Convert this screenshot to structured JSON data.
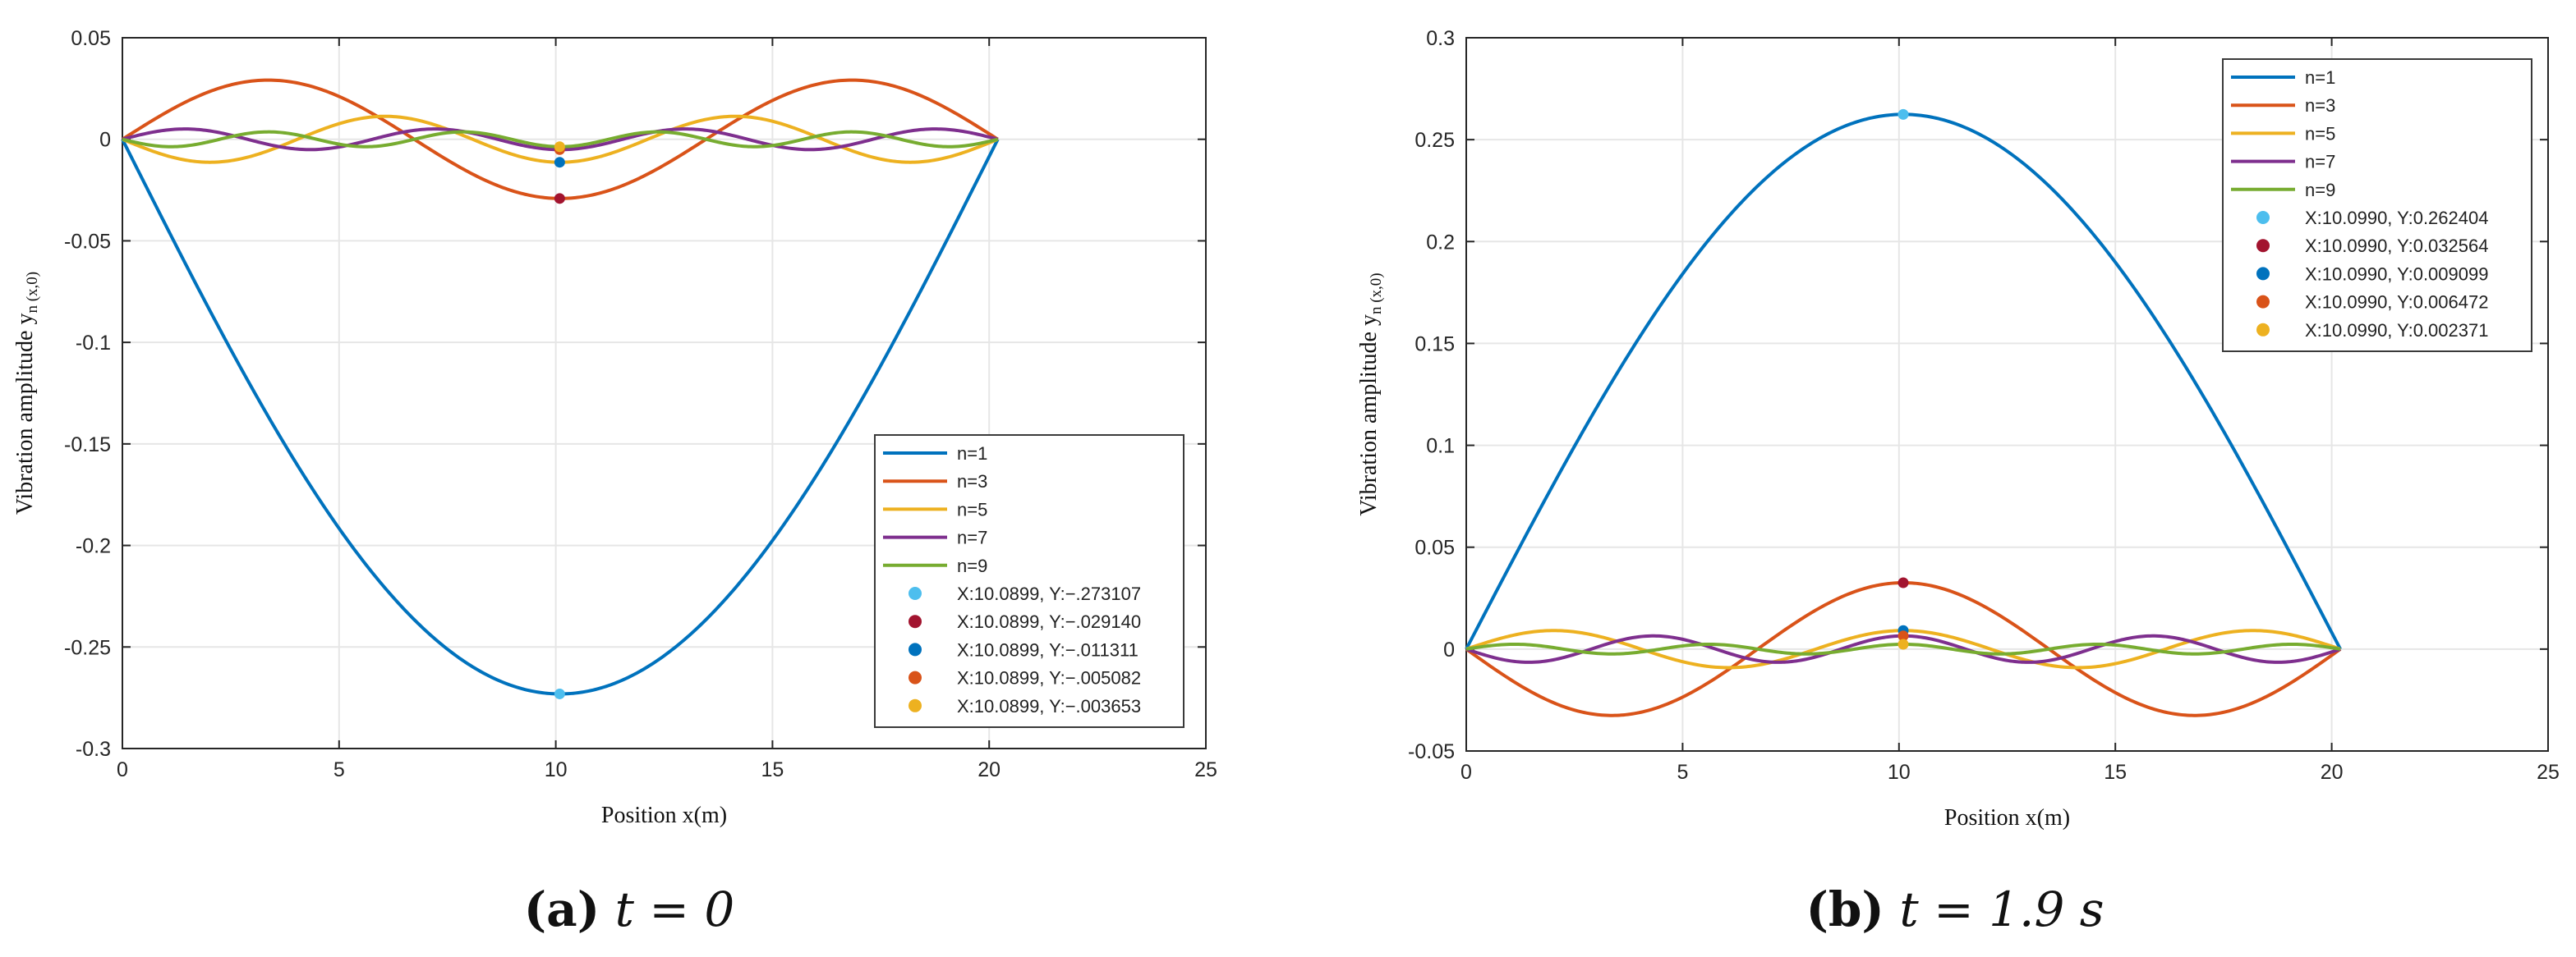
{
  "colors": {
    "n1": "#0072BD",
    "n3": "#D95319",
    "n5": "#EDB120",
    "n7": "#7E2F8E",
    "n9": "#77AC30",
    "marker1": "#4DBEEE",
    "marker2": "#A2142F",
    "marker3": "#0072BD",
    "marker4": "#D95319",
    "marker5": "#EDB120",
    "grid": "#e6e6e6",
    "axis": "#262626"
  },
  "chart_data": [
    {
      "type": "line",
      "panel": "a",
      "caption": {
        "label": "(a)",
        "text": "t = 0"
      },
      "xlabel": "Position x(m)",
      "ylabel": "Vibration amplitude yn (x,0)",
      "ylabel_main": "Vibration amplitude y",
      "ylabel_sub": "n (x,0)",
      "xlim": [
        0,
        25
      ],
      "ylim": [
        -0.3,
        0.05
      ],
      "xticks": [
        "0",
        "5",
        "10",
        "15",
        "20",
        "25"
      ],
      "yticks": [
        "0.05",
        "0",
        "-0.05",
        "-0.1",
        "-0.15",
        "-0.2",
        "-0.25",
        "-0.3"
      ],
      "grid": true,
      "legend_position": "bottom-right",
      "beam_length": 20.2,
      "series": [
        {
          "name": "n=1",
          "mode": 1,
          "amplitude": -0.273107
        },
        {
          "name": "n=3",
          "mode": 3,
          "amplitude": 0.02914
        },
        {
          "name": "n=5",
          "mode": 5,
          "amplitude": -0.011311
        },
        {
          "name": "n=7",
          "mode": 7,
          "amplitude": 0.005082
        },
        {
          "name": "n=9",
          "mode": 9,
          "amplitude": -0.003653
        }
      ],
      "markers": [
        {
          "label": "X:10.0899, Y:−.273107",
          "x": 10.0899,
          "y": -0.273107
        },
        {
          "label": "X:10.0899, Y:−.029140",
          "x": 10.0899,
          "y": -0.02914
        },
        {
          "label": "X:10.0899, Y:−.011311",
          "x": 10.0899,
          "y": -0.011311
        },
        {
          "label": "X:10.0899, Y:−.005082",
          "x": 10.0899,
          "y": -0.005082
        },
        {
          "label": "X:10.0899, Y:−.003653",
          "x": 10.0899,
          "y": -0.003653
        }
      ]
    },
    {
      "type": "line",
      "panel": "b",
      "caption": {
        "label": "(b)",
        "text": "t = 1.9 s"
      },
      "xlabel": "Position x(m)",
      "ylabel": "Vibration amplitude yn (x,0)",
      "ylabel_main": "Vibration amplitude y",
      "ylabel_sub": "n (x,0)",
      "xlim": [
        0,
        25
      ],
      "ylim": [
        -0.05,
        0.3
      ],
      "xticks": [
        "0",
        "5",
        "10",
        "15",
        "20",
        "25"
      ],
      "yticks": [
        "0.3",
        "0.25",
        "0.2",
        "0.15",
        "0.1",
        "0.05",
        "0",
        "-0.05"
      ],
      "grid": true,
      "legend_position": "top-right",
      "beam_length": 20.2,
      "series": [
        {
          "name": "n=1",
          "mode": 1,
          "amplitude": 0.262404
        },
        {
          "name": "n=3",
          "mode": 3,
          "amplitude": -0.032564
        },
        {
          "name": "n=5",
          "mode": 5,
          "amplitude": 0.009099
        },
        {
          "name": "n=7",
          "mode": 7,
          "amplitude": -0.006472
        },
        {
          "name": "n=9",
          "mode": 9,
          "amplitude": 0.002371
        }
      ],
      "markers": [
        {
          "label": "X:10.0990, Y:0.262404",
          "x": 10.099,
          "y": 0.262404
        },
        {
          "label": "X:10.0990, Y:0.032564",
          "x": 10.099,
          "y": 0.032564
        },
        {
          "label": "X:10.0990, Y:0.009099",
          "x": 10.099,
          "y": 0.009099
        },
        {
          "label": "X:10.0990, Y:0.006472",
          "x": 10.099,
          "y": 0.006472
        },
        {
          "label": "X:10.0990, Y:0.002371",
          "x": 10.099,
          "y": 0.002371
        }
      ]
    }
  ]
}
